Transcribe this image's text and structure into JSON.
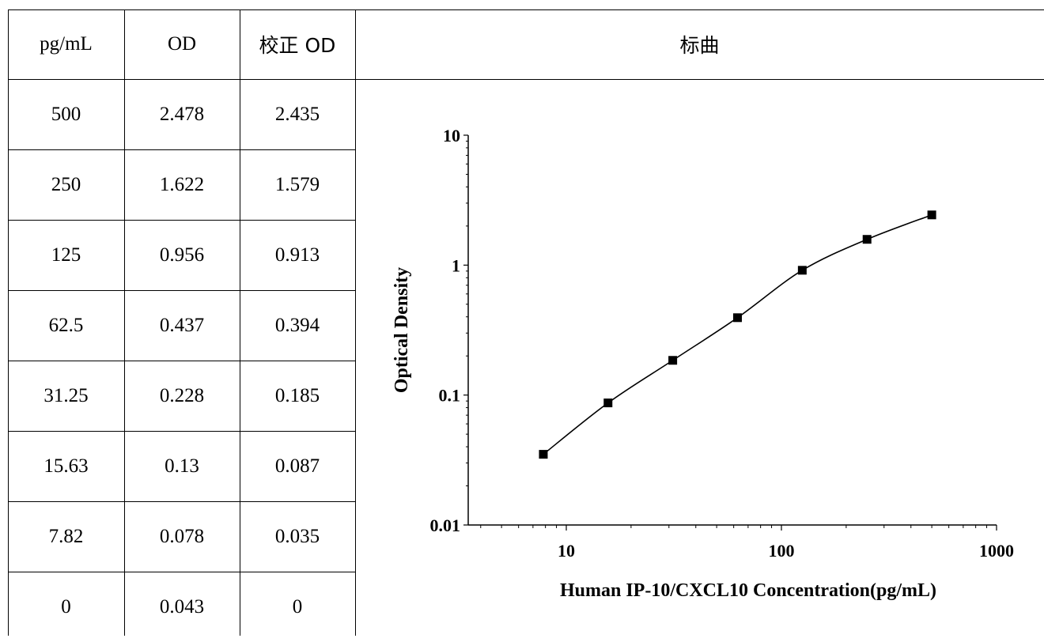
{
  "table": {
    "headers": [
      "pg/mL",
      "OD",
      "校正 OD"
    ],
    "chart_header": "标曲",
    "rows": [
      [
        "500",
        "2.478",
        "2.435"
      ],
      [
        "250",
        "1.622",
        "1.579"
      ],
      [
        "125",
        "0.956",
        "0.913"
      ],
      [
        "62.5",
        "0.437",
        "0.394"
      ],
      [
        "31.25",
        "0.228",
        "0.185"
      ],
      [
        "15.63",
        "0.13",
        "0.087"
      ],
      [
        "7.82",
        "0.078",
        "0.035"
      ],
      [
        "0",
        "0.043",
        "0"
      ]
    ]
  },
  "chart_data": {
    "type": "scatter",
    "title": "",
    "xlabel": "Human IP-10/CXCL10 Concentration(pg/mL)",
    "ylabel": "Optical Density",
    "x_scale": "log",
    "y_scale": "log",
    "xlim": [
      3.5,
      1000
    ],
    "ylim": [
      0.01,
      10
    ],
    "x_ticks": [
      "10",
      "100",
      "1000"
    ],
    "y_ticks": [
      "0.01",
      "0.1",
      "1",
      "10"
    ],
    "grid": false,
    "marker": "square",
    "line": "smooth",
    "series": [
      {
        "x": [
          7.82,
          15.63,
          31.25,
          62.5,
          125,
          250,
          500
        ],
        "y": [
          0.035,
          0.087,
          0.185,
          0.394,
          0.913,
          1.579,
          2.435
        ]
      }
    ]
  }
}
